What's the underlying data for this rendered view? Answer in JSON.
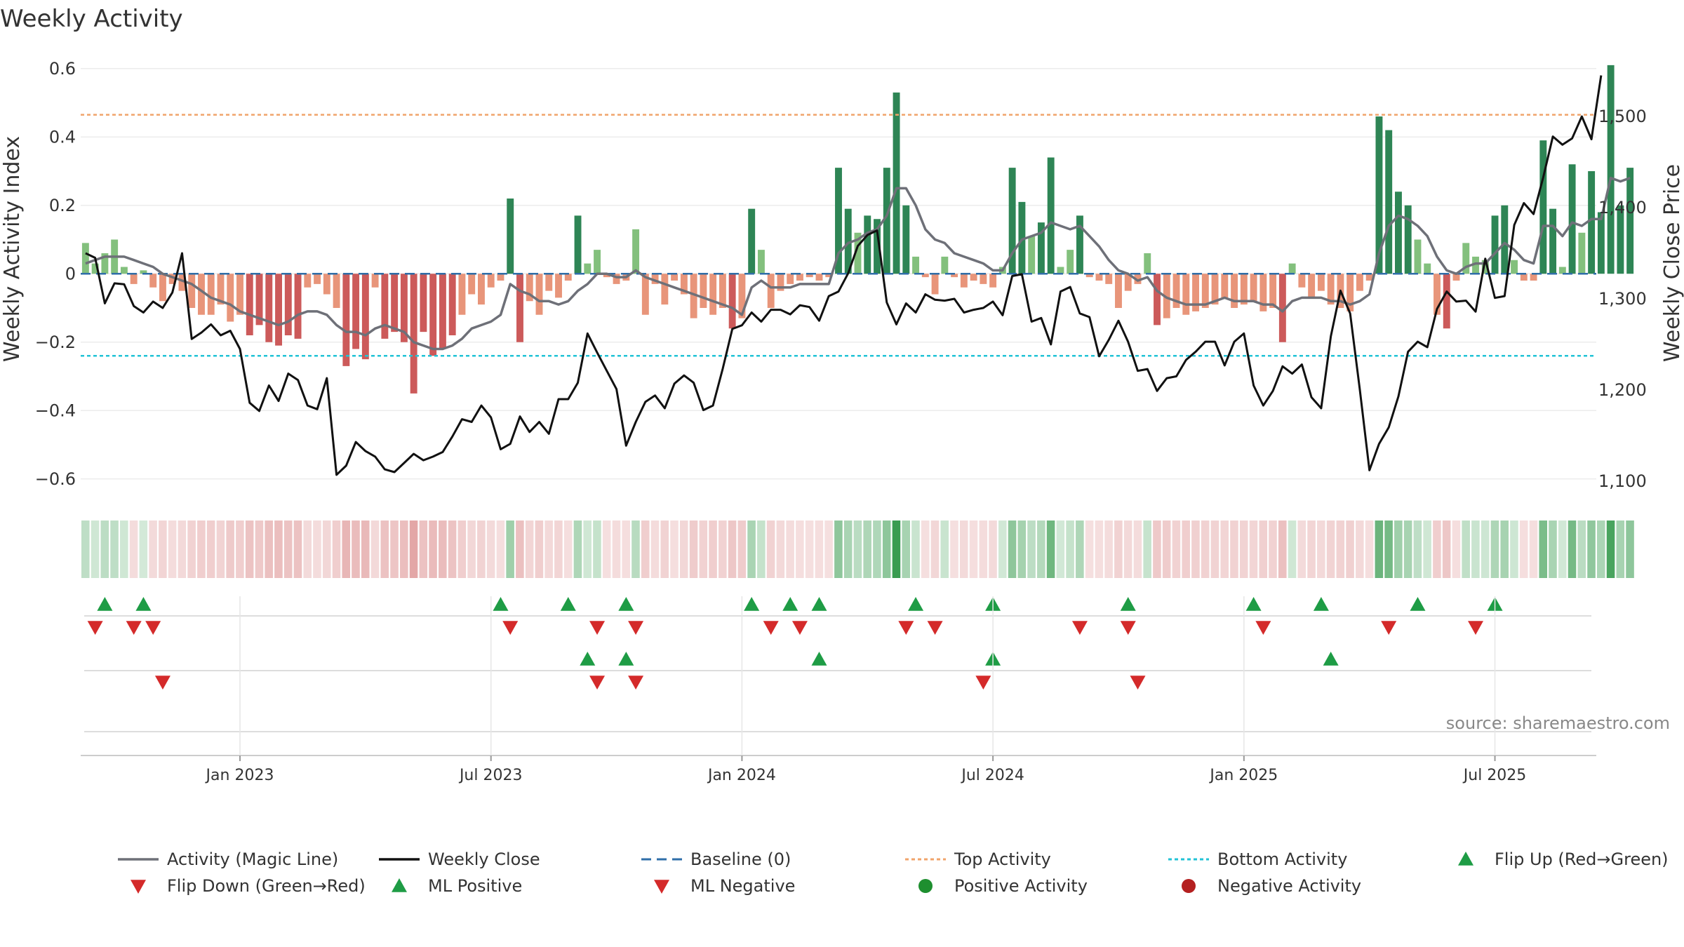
{
  "chart_data": {
    "type": "bar+line",
    "title": "Weekly Activity",
    "source": "source: sharemaestro.com",
    "y_left": {
      "label": "Weekly Activity Index",
      "range": [
        -0.66,
        0.62
      ],
      "ticks": [
        0.6,
        0.4,
        0.2,
        0,
        -0.2,
        -0.4,
        -0.6
      ],
      "tick_labels": [
        "0.6",
        "0.4",
        "0.2",
        "0",
        "−0.2",
        "−0.4",
        "−0.6"
      ]
    },
    "y_right": {
      "label": "Weekly Close Price",
      "range": [
        1080,
        1560
      ],
      "ticks": [
        1500,
        1400,
        1300,
        1200,
        1100
      ],
      "tick_labels": [
        "1,500",
        "1,400",
        "1,300",
        "1,200",
        "1,100"
      ]
    },
    "x_ticks": [
      {
        "label": "Jan 2023",
        "week": 16
      },
      {
        "label": "Jul 2023",
        "week": 42
      },
      {
        "label": "Jan 2024",
        "week": 68
      },
      {
        "label": "Jul 2024",
        "week": 94
      },
      {
        "label": "Jan 2025",
        "week": 120
      },
      {
        "label": "Jul 2025",
        "week": 146
      }
    ],
    "weeks": 157,
    "top_activity": 0.465,
    "bottom_activity": -0.24,
    "activity": [
      0.09,
      0.03,
      0.06,
      0.1,
      0.02,
      -0.03,
      0.01,
      -0.04,
      -0.08,
      -0.03,
      -0.05,
      -0.1,
      -0.12,
      -0.12,
      -0.09,
      -0.14,
      -0.12,
      -0.18,
      -0.15,
      -0.2,
      -0.21,
      -0.18,
      -0.19,
      -0.04,
      -0.03,
      -0.06,
      -0.1,
      -0.27,
      -0.22,
      -0.25,
      -0.04,
      -0.19,
      -0.17,
      -0.2,
      -0.35,
      -0.17,
      -0.24,
      -0.22,
      -0.18,
      -0.12,
      -0.06,
      -0.09,
      -0.04,
      -0.02,
      0.22,
      -0.2,
      -0.08,
      -0.12,
      -0.05,
      -0.07,
      -0.02,
      0.17,
      0.03,
      0.07,
      -0.01,
      -0.03,
      -0.02,
      0.13,
      -0.12,
      -0.03,
      -0.09,
      -0.02,
      -0.06,
      -0.13,
      -0.1,
      -0.12,
      -0.1,
      -0.16,
      -0.13,
      0.19,
      0.07,
      -0.1,
      -0.05,
      -0.03,
      -0.02,
      -0.01,
      -0.02,
      -0.01,
      0.31,
      0.19,
      0.12,
      0.17,
      0.16,
      0.31,
      0.53,
      0.2,
      0.05,
      -0.01,
      -0.06,
      0.05,
      -0.01,
      -0.04,
      -0.02,
      -0.03,
      -0.04,
      0.02,
      0.31,
      0.21,
      0.11,
      0.15,
      0.34,
      0.02,
      0.07,
      0.17,
      -0.01,
      -0.02,
      -0.03,
      -0.1,
      -0.05,
      -0.03,
      0.06,
      -0.15,
      -0.13,
      -0.1,
      -0.12,
      -0.11,
      -0.1,
      -0.09,
      -0.07,
      -0.1,
      -0.09,
      -0.08,
      -0.11,
      -0.1,
      -0.2,
      0.03,
      -0.04,
      -0.07,
      -0.05,
      -0.09,
      -0.1,
      -0.11,
      -0.05,
      -0.02,
      0.46,
      0.42,
      0.24,
      0.2,
      0.1,
      0.03,
      -0.12,
      -0.16,
      -0.02,
      0.09,
      0.05,
      0.04,
      0.17,
      0.2,
      0.04,
      -0.02,
      -0.02,
      0.39,
      0.19,
      0.02,
      0.32,
      0.12,
      0.3,
      0.18,
      0.61,
      0.2,
      0.31
    ],
    "magic_line": [
      0.03,
      0.04,
      0.05,
      0.05,
      0.05,
      0.04,
      0.03,
      0.02,
      0.0,
      -0.01,
      -0.02,
      -0.03,
      -0.05,
      -0.07,
      -0.08,
      -0.09,
      -0.11,
      -0.12,
      -0.13,
      -0.14,
      -0.15,
      -0.14,
      -0.12,
      -0.11,
      -0.11,
      -0.12,
      -0.15,
      -0.17,
      -0.17,
      -0.18,
      -0.16,
      -0.15,
      -0.16,
      -0.17,
      -0.2,
      -0.21,
      -0.22,
      -0.22,
      -0.21,
      -0.19,
      -0.16,
      -0.15,
      -0.14,
      -0.12,
      -0.03,
      -0.05,
      -0.06,
      -0.08,
      -0.08,
      -0.09,
      -0.08,
      -0.05,
      -0.03,
      0.0,
      0.0,
      -0.01,
      -0.01,
      0.01,
      -0.01,
      -0.02,
      -0.03,
      -0.04,
      -0.05,
      -0.06,
      -0.07,
      -0.08,
      -0.09,
      -0.1,
      -0.12,
      -0.04,
      -0.02,
      -0.04,
      -0.04,
      -0.04,
      -0.03,
      -0.03,
      -0.03,
      -0.03,
      0.06,
      0.09,
      0.1,
      0.12,
      0.13,
      0.17,
      0.25,
      0.25,
      0.2,
      0.13,
      0.1,
      0.09,
      0.06,
      0.05,
      0.04,
      0.03,
      0.01,
      0.01,
      0.06,
      0.1,
      0.11,
      0.12,
      0.15,
      0.14,
      0.13,
      0.14,
      0.11,
      0.08,
      0.04,
      0.01,
      0.0,
      -0.02,
      -0.01,
      -0.05,
      -0.07,
      -0.08,
      -0.09,
      -0.09,
      -0.09,
      -0.08,
      -0.07,
      -0.08,
      -0.08,
      -0.08,
      -0.09,
      -0.09,
      -0.11,
      -0.08,
      -0.07,
      -0.07,
      -0.07,
      -0.08,
      -0.08,
      -0.09,
      -0.08,
      -0.06,
      0.06,
      0.14,
      0.17,
      0.16,
      0.14,
      0.11,
      0.05,
      0.01,
      0.0,
      0.02,
      0.03,
      0.03,
      0.06,
      0.09,
      0.07,
      0.04,
      0.03,
      0.14,
      0.14,
      0.11,
      0.15,
      0.14,
      0.16,
      0.16,
      0.28,
      0.27,
      0.28
    ],
    "close": [
      1350,
      1345,
      1295,
      1317,
      1316,
      1292,
      1285,
      1297,
      1290,
      1307,
      1350,
      1256,
      1263,
      1272,
      1260,
      1265,
      1245,
      1186,
      1177,
      1205,
      1188,
      1218,
      1211,
      1183,
      1179,
      1213,
      1107,
      1117,
      1143,
      1133,
      1127,
      1113,
      1110,
      1120,
      1130,
      1123,
      1127,
      1132,
      1149,
      1168,
      1165,
      1183,
      1170,
      1135,
      1141,
      1171,
      1154,
      1165,
      1152,
      1190,
      1190,
      1208,
      1262,
      1241,
      1221,
      1201,
      1139,
      1165,
      1187,
      1194,
      1180,
      1207,
      1216,
      1208,
      1178,
      1183,
      1223,
      1267,
      1271,
      1285,
      1275,
      1288,
      1288,
      1283,
      1293,
      1291,
      1276,
      1303,
      1308,
      1328,
      1358,
      1370,
      1375,
      1296,
      1272,
      1295,
      1285,
      1305,
      1299,
      1298,
      1300,
      1285,
      1288,
      1290,
      1297,
      1282,
      1325,
      1327,
      1275,
      1279,
      1250,
      1308,
      1313,
      1284,
      1280,
      1237,
      1255,
      1276,
      1253,
      1221,
      1223,
      1199,
      1213,
      1215,
      1233,
      1242,
      1253,
      1253,
      1227,
      1253,
      1262,
      1205,
      1183,
      1199,
      1226,
      1218,
      1228,
      1192,
      1180,
      1259,
      1309,
      1284,
      1201,
      1112,
      1141,
      1159,
      1193,
      1242,
      1253,
      1247,
      1289,
      1308,
      1297,
      1298,
      1286,
      1344,
      1301,
      1303,
      1381,
      1405,
      1393,
      1433,
      1478,
      1469,
      1476,
      1500,
      1475,
      1545
    ],
    "fill_intensity": [
      2,
      1,
      3,
      1,
      2,
      1,
      1,
      1,
      1,
      1,
      1,
      1,
      1,
      1,
      1,
      1,
      1,
      1,
      1,
      1,
      1,
      1,
      1,
      1,
      1,
      1,
      2,
      1,
      1,
      1,
      2,
      1,
      1,
      2,
      1,
      2,
      1,
      1,
      1,
      1,
      1,
      1,
      1,
      1,
      2,
      1,
      1,
      1,
      1,
      1,
      1,
      1,
      1,
      1,
      1,
      1,
      1,
      1,
      1,
      1,
      1,
      1,
      1,
      1,
      1,
      1,
      1,
      1,
      1,
      1,
      1,
      1,
      1,
      1,
      1,
      1,
      1,
      1,
      1,
      1,
      1,
      1,
      1,
      1,
      3,
      1,
      1,
      1,
      1,
      1,
      1,
      1,
      1,
      1,
      1,
      1,
      1,
      1,
      1,
      1,
      3,
      1,
      1,
      1,
      1,
      1,
      1,
      1,
      1,
      1,
      1,
      1,
      1,
      1,
      1,
      1,
      1,
      1,
      1,
      1,
      1,
      1,
      1,
      1,
      1,
      1,
      1,
      1,
      1,
      1,
      1,
      1,
      1,
      1,
      1,
      1,
      1,
      1,
      1,
      1,
      1,
      1,
      1,
      1,
      1,
      1,
      1,
      1,
      1,
      1,
      1,
      1,
      1,
      1,
      3,
      1,
      1
    ],
    "flip_up_weeks": [
      2,
      6,
      43,
      50,
      56,
      69,
      73,
      76,
      86,
      94,
      108,
      121,
      128,
      138,
      146
    ],
    "flip_down_weeks": [
      1,
      5,
      7,
      44,
      53,
      57,
      71,
      74,
      85,
      88,
      103,
      108,
      122,
      135,
      144
    ],
    "ml_positive_weeks": [
      52,
      56,
      76,
      94,
      129
    ],
    "ml_negative_weeks": [
      8,
      53,
      57,
      93,
      109
    ],
    "legend": [
      {
        "label": "Activity (Magic Line)",
        "kind": "line",
        "color": "#6e7078"
      },
      {
        "label": "Weekly Close",
        "kind": "line",
        "color": "#111111"
      },
      {
        "label": "Baseline (0)",
        "kind": "dash",
        "color": "#2f6ea8"
      },
      {
        "label": "Top Activity",
        "kind": "dot",
        "color": "#f0a46b"
      },
      {
        "label": "Bottom Activity",
        "kind": "dot",
        "color": "#22c3d6"
      },
      {
        "label": "Flip Up (Red→Green)",
        "kind": "tri-up",
        "color": "#1e9c45"
      },
      {
        "label": "Flip Down (Green→Red)",
        "kind": "tri-down",
        "color": "#d42a2a"
      },
      {
        "label": "ML Positive",
        "kind": "tri-up",
        "color": "#1e9c45"
      },
      {
        "label": "ML Negative",
        "kind": "tri-down",
        "color": "#d42a2a"
      },
      {
        "label": "Positive Activity",
        "kind": "circle",
        "color": "#1e8f2f"
      },
      {
        "label": "Negative Activity",
        "kind": "circle",
        "color": "#b42020"
      }
    ]
  }
}
